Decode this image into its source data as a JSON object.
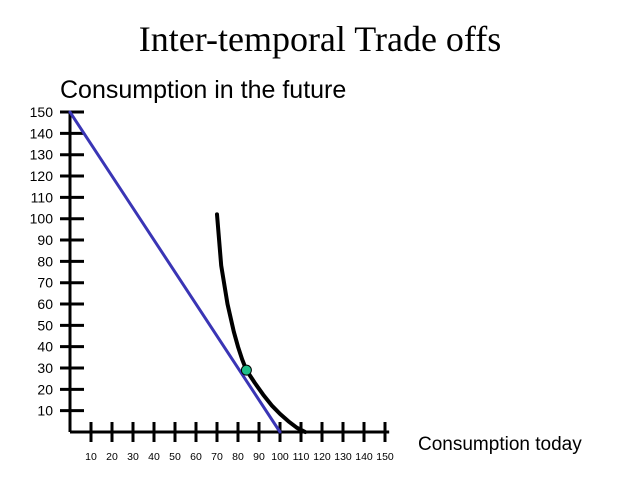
{
  "chart_data": {
    "type": "line",
    "title": "Inter-temporal Trade offs",
    "xlabel": "Consumption today",
    "ylabel": "Consumption in the future",
    "xlim": [
      0,
      150
    ],
    "ylim": [
      0,
      150
    ],
    "x_ticks": [
      10,
      20,
      30,
      40,
      50,
      60,
      70,
      80,
      90,
      100,
      110,
      120,
      130,
      140,
      150
    ],
    "y_ticks": [
      10,
      20,
      30,
      40,
      50,
      60,
      70,
      80,
      90,
      100,
      110,
      120,
      130,
      140,
      150
    ],
    "x_tick_labels": [
      "10",
      "20",
      "30",
      "40",
      "50",
      "60",
      "70",
      "80",
      "90",
      "100",
      "110",
      "120",
      "130",
      "140",
      "150"
    ],
    "y_tick_labels": [
      "10",
      "20",
      "30",
      "40",
      "50",
      "60",
      "70",
      "80",
      "90",
      "100",
      "110",
      "120",
      "130",
      "140",
      "150"
    ],
    "grid": false,
    "series": [
      {
        "kind": "budget-line",
        "color": "#3a35b5",
        "x": [
          0,
          100
        ],
        "y": [
          150,
          0
        ]
      },
      {
        "kind": "indifference-curve",
        "color": "#000000",
        "x": [
          70,
          72,
          75,
          78,
          80,
          82,
          84,
          88,
          92,
          96,
          100,
          104,
          108,
          112
        ],
        "y": [
          102,
          78,
          60,
          47,
          40,
          34,
          29,
          23,
          17.5,
          12.5,
          8.5,
          5,
          2,
          0
        ]
      }
    ],
    "points": [
      {
        "kind": "tangency-point",
        "x": 84,
        "y": 29,
        "color": "#1fbf8a"
      }
    ]
  }
}
